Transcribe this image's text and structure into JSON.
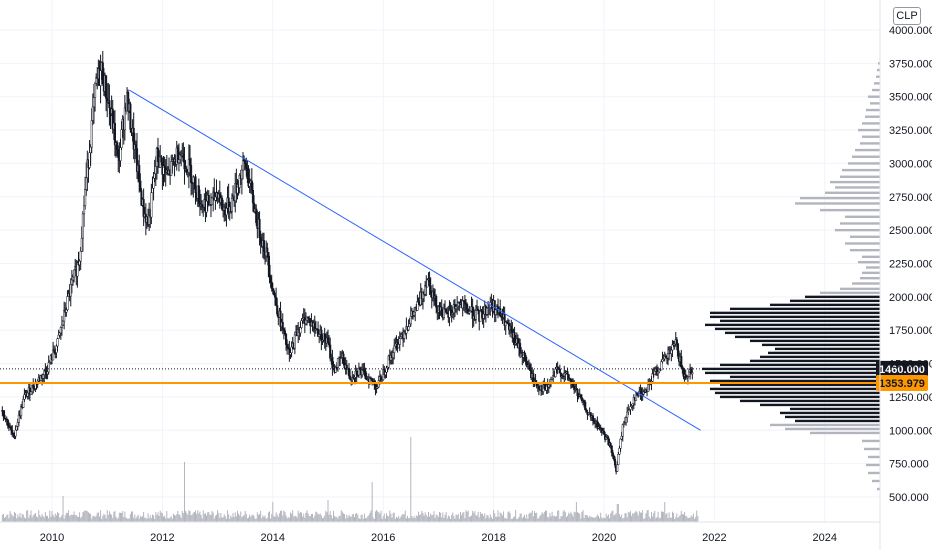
{
  "currency": "CLP",
  "chart_data": {
    "type": "candlestick",
    "x_ticks": [
      "2010",
      "2012",
      "2014",
      "2016",
      "2018",
      "2020",
      "2022",
      "2024"
    ],
    "y_ticks": [
      "500.000",
      "750.000",
      "1000.000",
      "1250.000",
      "1500.000",
      "1750.000",
      "2000.000",
      "2250.000",
      "2500.000",
      "2750.000",
      "3000.000",
      "3250.000",
      "3500.000",
      "3750.000",
      "4000.000"
    ],
    "ylim": [
      400,
      4100
    ],
    "xlim": [
      2009.1,
      2025.1
    ],
    "price_path": [
      [
        2009.1,
        1150
      ],
      [
        2009.3,
        950
      ],
      [
        2009.5,
        1250
      ],
      [
        2009.7,
        1350
      ],
      [
        2009.9,
        1450
      ],
      [
        2010.1,
        1650
      ],
      [
        2010.3,
        2000
      ],
      [
        2010.5,
        2300
      ],
      [
        2010.6,
        2800
      ],
      [
        2010.7,
        3200
      ],
      [
        2010.8,
        3600
      ],
      [
        2010.9,
        3700
      ],
      [
        2011.0,
        3500
      ],
      [
        2011.1,
        3300
      ],
      [
        2011.2,
        3000
      ],
      [
        2011.35,
        3500
      ],
      [
        2011.5,
        3100
      ],
      [
        2011.65,
        2650
      ],
      [
        2011.75,
        2550
      ],
      [
        2011.9,
        3050
      ],
      [
        2012.1,
        2900
      ],
      [
        2012.3,
        3100
      ],
      [
        2012.5,
        2950
      ],
      [
        2012.7,
        2700
      ],
      [
        2012.9,
        2700
      ],
      [
        2013.0,
        2800
      ],
      [
        2013.1,
        2650
      ],
      [
        2013.25,
        2700
      ],
      [
        2013.4,
        2900
      ],
      [
        2013.5,
        3000
      ],
      [
        2013.6,
        2800
      ],
      [
        2013.75,
        2500
      ],
      [
        2013.9,
        2300
      ],
      [
        2014.0,
        2050
      ],
      [
        2014.15,
        1800
      ],
      [
        2014.3,
        1550
      ],
      [
        2014.45,
        1750
      ],
      [
        2014.6,
        1850
      ],
      [
        2014.8,
        1750
      ],
      [
        2015.0,
        1650
      ],
      [
        2015.1,
        1450
      ],
      [
        2015.25,
        1550
      ],
      [
        2015.4,
        1400
      ],
      [
        2015.55,
        1450
      ],
      [
        2015.7,
        1400
      ],
      [
        2015.9,
        1330
      ],
      [
        2016.05,
        1480
      ],
      [
        2016.25,
        1650
      ],
      [
        2016.45,
        1800
      ],
      [
        2016.65,
        1950
      ],
      [
        2016.8,
        2150
      ],
      [
        2016.95,
        1950
      ],
      [
        2017.15,
        1850
      ],
      [
        2017.35,
        1950
      ],
      [
        2017.55,
        1900
      ],
      [
        2017.75,
        1850
      ],
      [
        2017.95,
        1950
      ],
      [
        2018.15,
        1850
      ],
      [
        2018.35,
        1700
      ],
      [
        2018.55,
        1550
      ],
      [
        2018.75,
        1350
      ],
      [
        2018.95,
        1300
      ],
      [
        2019.15,
        1450
      ],
      [
        2019.35,
        1400
      ],
      [
        2019.55,
        1250
      ],
      [
        2019.75,
        1100
      ],
      [
        2019.95,
        1000
      ],
      [
        2020.1,
        900
      ],
      [
        2020.22,
        700
      ],
      [
        2020.35,
        1050
      ],
      [
        2020.55,
        1250
      ],
      [
        2020.75,
        1300
      ],
      [
        2020.95,
        1450
      ],
      [
        2021.15,
        1550
      ],
      [
        2021.3,
        1650
      ],
      [
        2021.45,
        1400
      ],
      [
        2021.6,
        1460
      ]
    ],
    "trendline": {
      "from": [
        2011.4,
        3550
      ],
      "to": [
        2021.75,
        1000
      ]
    },
    "lines": [
      {
        "price": 1460,
        "label": "1460.000",
        "style": "dotted",
        "color": "#131722"
      },
      {
        "price": 1353.979,
        "label": "1353.979",
        "style": "solid",
        "color": "#ff9800"
      }
    ],
    "volume_spikes": [
      [
        2010.2,
        26
      ],
      [
        2012.4,
        60
      ],
      [
        2014.0,
        20
      ],
      [
        2015.0,
        22
      ],
      [
        2015.8,
        40
      ],
      [
        2016.5,
        85
      ],
      [
        2019.5,
        20
      ],
      [
        2020.25,
        18
      ],
      [
        2021.1,
        20
      ]
    ],
    "volume_profile": [
      [
        560,
        3,
        "gray"
      ],
      [
        620,
        8,
        "gray"
      ],
      [
        680,
        12,
        "gray"
      ],
      [
        740,
        14,
        "gray"
      ],
      [
        800,
        12,
        "gray"
      ],
      [
        860,
        16,
        "gray"
      ],
      [
        920,
        18,
        "gray"
      ],
      [
        980,
        70,
        "gray"
      ],
      [
        1010,
        95,
        "gray"
      ],
      [
        1040,
        110,
        "gray"
      ],
      [
        1070,
        85,
        "black"
      ],
      [
        1100,
        95,
        "black"
      ],
      [
        1130,
        100,
        "black"
      ],
      [
        1160,
        90,
        "black"
      ],
      [
        1190,
        120,
        "black"
      ],
      [
        1220,
        140,
        "black"
      ],
      [
        1250,
        160,
        "black"
      ],
      [
        1280,
        165,
        "black"
      ],
      [
        1310,
        170,
        "black"
      ],
      [
        1340,
        160,
        "black"
      ],
      [
        1370,
        170,
        "black"
      ],
      [
        1400,
        150,
        "black"
      ],
      [
        1430,
        175,
        "black"
      ],
      [
        1460,
        178,
        "black"
      ],
      [
        1490,
        160,
        "black"
      ],
      [
        1520,
        130,
        "black"
      ],
      [
        1550,
        120,
        "black"
      ],
      [
        1580,
        112,
        "black"
      ],
      [
        1610,
        105,
        "black"
      ],
      [
        1640,
        118,
        "black"
      ],
      [
        1670,
        130,
        "black"
      ],
      [
        1700,
        145,
        "black"
      ],
      [
        1730,
        155,
        "black"
      ],
      [
        1760,
        165,
        "black"
      ],
      [
        1790,
        175,
        "black"
      ],
      [
        1820,
        160,
        "black"
      ],
      [
        1850,
        170,
        "black"
      ],
      [
        1880,
        170,
        "black"
      ],
      [
        1910,
        150,
        "black"
      ],
      [
        1940,
        110,
        "black"
      ],
      [
        1970,
        90,
        "black"
      ],
      [
        2000,
        75,
        "black"
      ],
      [
        2030,
        60,
        "gray"
      ],
      [
        2060,
        40,
        "gray"
      ],
      [
        2100,
        28,
        "gray"
      ],
      [
        2140,
        20,
        "gray"
      ],
      [
        2180,
        18,
        "gray"
      ],
      [
        2220,
        14,
        "gray"
      ],
      [
        2260,
        22,
        "gray"
      ],
      [
        2300,
        18,
        "gray"
      ],
      [
        2350,
        30,
        "gray"
      ],
      [
        2400,
        35,
        "gray"
      ],
      [
        2450,
        30,
        "gray"
      ],
      [
        2500,
        45,
        "gray"
      ],
      [
        2550,
        40,
        "gray"
      ],
      [
        2600,
        35,
        "gray"
      ],
      [
        2650,
        60,
        "gray"
      ],
      [
        2700,
        85,
        "gray"
      ],
      [
        2740,
        80,
        "gray"
      ],
      [
        2780,
        55,
        "gray"
      ],
      [
        2820,
        45,
        "gray"
      ],
      [
        2860,
        50,
        "gray"
      ],
      [
        2900,
        40,
        "gray"
      ],
      [
        2950,
        38,
        "gray"
      ],
      [
        3000,
        32,
        "gray"
      ],
      [
        3050,
        28,
        "gray"
      ],
      [
        3100,
        25,
        "gray"
      ],
      [
        3150,
        20,
        "gray"
      ],
      [
        3200,
        18,
        "gray"
      ],
      [
        3250,
        22,
        "gray"
      ],
      [
        3300,
        18,
        "gray"
      ],
      [
        3350,
        15,
        "gray"
      ],
      [
        3400,
        14,
        "gray"
      ],
      [
        3450,
        10,
        "gray"
      ],
      [
        3500,
        12,
        "gray"
      ],
      [
        3550,
        8,
        "gray"
      ],
      [
        3600,
        6,
        "gray"
      ],
      [
        3650,
        4,
        "gray"
      ],
      [
        3700,
        3,
        "gray"
      ],
      [
        3750,
        2,
        "gray"
      ]
    ],
    "colors": {
      "candle": "#131722",
      "trendline": "#2962ff",
      "support": "#ff9800",
      "profile_dark": "#131722",
      "profile_light": "#b2b5be",
      "grid": "#f0f3fa",
      "axis_text": "#131722"
    }
  }
}
